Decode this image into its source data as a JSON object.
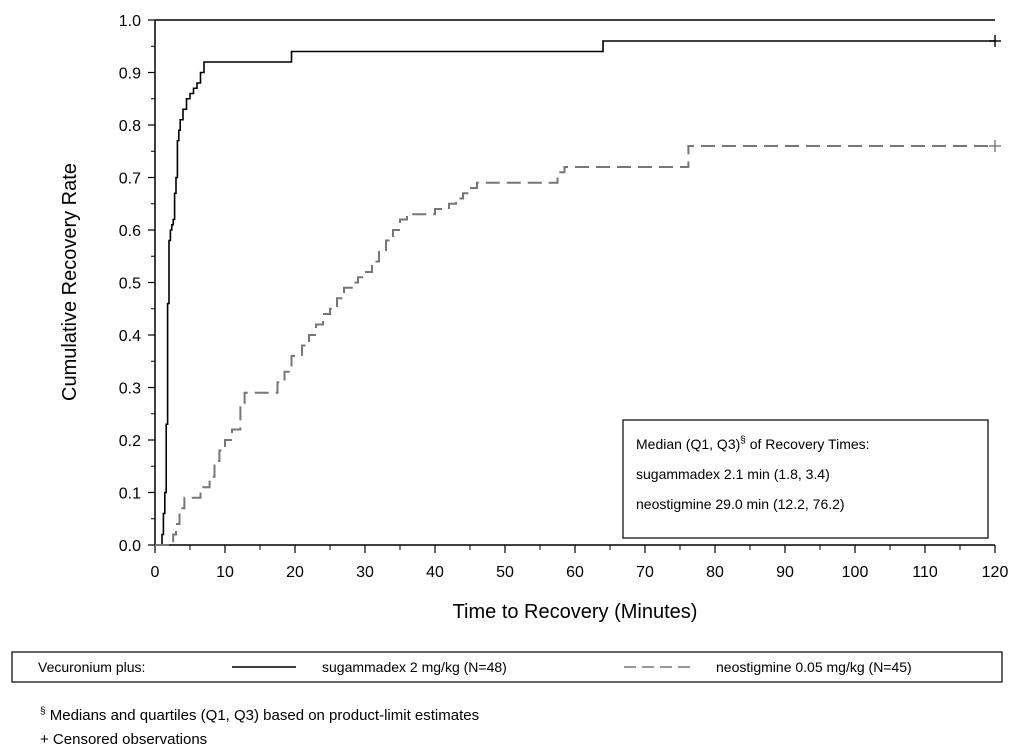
{
  "chart_data": {
    "type": "line",
    "xlabel": "Time to Recovery (Minutes)",
    "ylabel": "Cumulative Recovery Rate",
    "xlim": [
      0,
      120
    ],
    "ylim": [
      0,
      1.0
    ],
    "x_ticks": [
      "0",
      "10",
      "20",
      "30",
      "40",
      "50",
      "60",
      "70",
      "80",
      "90",
      "100",
      "110",
      "120"
    ],
    "y_ticks": [
      "0.0",
      "0.1",
      "0.2",
      "0.3",
      "0.4",
      "0.5",
      "0.6",
      "0.7",
      "0.8",
      "0.9",
      "1.0"
    ],
    "grid": false,
    "series": [
      {
        "name": "sugammadex 2 mg/kg (N=48)",
        "style": "solid",
        "color": "#000000",
        "x": [
          0,
          1.0,
          1.2,
          1.4,
          1.6,
          1.8,
          2.0,
          2.2,
          2.4,
          2.6,
          2.8,
          3.0,
          3.2,
          3.4,
          3.6,
          3.8,
          4.0,
          4.5,
          5.0,
          5.5,
          6.0,
          6.5,
          7.0,
          19.5,
          64.0,
          120
        ],
        "y": [
          0,
          0.02,
          0.06,
          0.1,
          0.23,
          0.46,
          0.58,
          0.6,
          0.61,
          0.62,
          0.67,
          0.7,
          0.77,
          0.79,
          0.81,
          0.81,
          0.83,
          0.85,
          0.86,
          0.87,
          0.88,
          0.9,
          0.92,
          0.94,
          0.96,
          0.96
        ]
      },
      {
        "name": "neostigmine 0.05 mg/kg (N=45)",
        "style": "dashed",
        "color": "#777777",
        "x": [
          0,
          2.6,
          3.0,
          3.5,
          4.2,
          6.5,
          7.8,
          8.5,
          9.2,
          10.0,
          11.0,
          12.2,
          12.8,
          17.5,
          18.5,
          19.5,
          21.0,
          22.0,
          23.0,
          24.0,
          25.0,
          26.0,
          27.0,
          28.5,
          29.0,
          30.0,
          31.0,
          32.0,
          33.0,
          34.0,
          35.0,
          36.0,
          40.0,
          42.0,
          43.0,
          44.0,
          45.0,
          46.0,
          57.5,
          58.5,
          76.2,
          120
        ],
        "y": [
          0,
          0.02,
          0.04,
          0.07,
          0.09,
          0.11,
          0.13,
          0.16,
          0.18,
          0.2,
          0.22,
          0.27,
          0.29,
          0.31,
          0.33,
          0.36,
          0.38,
          0.4,
          0.42,
          0.44,
          0.45,
          0.47,
          0.49,
          0.5,
          0.51,
          0.52,
          0.54,
          0.56,
          0.58,
          0.6,
          0.62,
          0.63,
          0.64,
          0.65,
          0.66,
          0.67,
          0.68,
          0.69,
          0.71,
          0.72,
          0.76,
          0.76
        ]
      }
    ],
    "censored_marks": [
      {
        "series": 0,
        "x": 120,
        "y": 0.96
      },
      {
        "series": 1,
        "x": 120,
        "y": 0.76
      }
    ],
    "annotation_box": {
      "placement": "lower-right",
      "title_main": "Median (Q1, Q3)",
      "title_sup": "§",
      "title_tail": " of Recovery Times:",
      "line1": "sugammadex 2.1 min (1.8, 3.4)",
      "line2": "neostigmine 29.0 min (12.2, 76.2)"
    },
    "legend": {
      "placement": "below",
      "lead": "Vecuronium plus:"
    },
    "footnotes": {
      "sup": "§",
      "note1": " Medians and quartiles (Q1, Q3) based on product-limit estimates",
      "note2": "+ Censored observations"
    }
  }
}
